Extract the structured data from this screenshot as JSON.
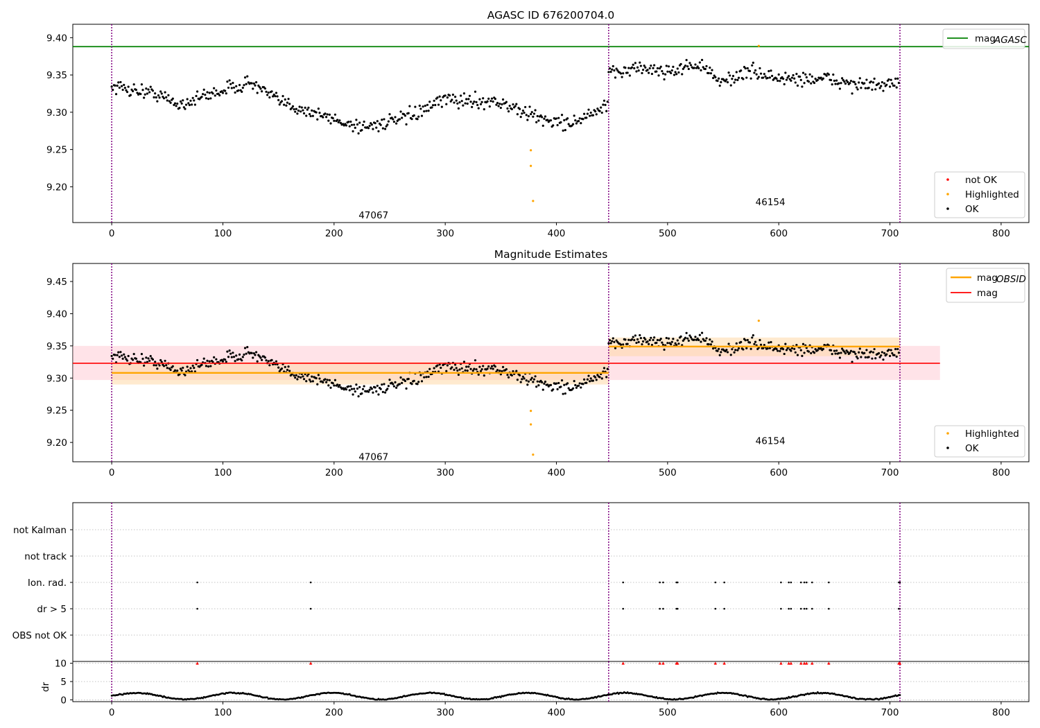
{
  "colors": {
    "ok": "#000000",
    "highlighted": "#ffa500",
    "not_ok": "#ff0000",
    "mag_agasc": "#008000",
    "mag_obsid": "#ffa500",
    "mag": "#ff0000",
    "band_mag": "#ffc0cb",
    "band_obsid": "#ffd8a8",
    "obsid_boundary": "#800080"
  },
  "chart_data": [
    {
      "type": "scatter",
      "title": "AGASC ID 676200704.0",
      "xlim": [
        -35,
        825
      ],
      "ylim": [
        9.152,
        9.418
      ],
      "x_ticks": [
        0,
        100,
        200,
        300,
        400,
        500,
        600,
        700,
        800
      ],
      "y_ticks": [
        9.2,
        9.25,
        9.3,
        9.35,
        9.4
      ],
      "y_tick_labels": [
        "9.20",
        "9.25",
        "9.30",
        "9.35",
        "9.40"
      ],
      "grid": false,
      "obsid_boundaries": [
        0,
        447,
        709
      ],
      "obsid_labels": [
        {
          "text": "47067",
          "x": 223,
          "y": 9.162
        },
        {
          "text": "46154",
          "x": 580,
          "y": 9.18
        }
      ],
      "mag_agasc": 9.388,
      "ok_segments": [
        {
          "x_start": 0,
          "x_end": 446,
          "y_knots": [
            [
              0,
              9.335
            ],
            [
              40,
              9.325
            ],
            [
              60,
              9.31
            ],
            [
              100,
              9.33
            ],
            [
              125,
              9.34
            ],
            [
              150,
              9.315
            ],
            [
              180,
              9.3
            ],
            [
              200,
              9.29
            ],
            [
              225,
              9.28
            ],
            [
              260,
              9.29
            ],
            [
              285,
              9.305
            ],
            [
              300,
              9.318
            ],
            [
              320,
              9.315
            ],
            [
              345,
              9.315
            ],
            [
              370,
              9.3
            ],
            [
              390,
              9.29
            ],
            [
              410,
              9.285
            ],
            [
              430,
              9.295
            ],
            [
              446,
              9.31
            ]
          ],
          "noise": 0.009
        },
        {
          "x_start": 447,
          "x_end": 708,
          "y_knots": [
            [
              447,
              9.35
            ],
            [
              470,
              9.36
            ],
            [
              500,
              9.355
            ],
            [
              530,
              9.365
            ],
            [
              545,
              9.34
            ],
            [
              575,
              9.355
            ],
            [
              600,
              9.345
            ],
            [
              640,
              9.345
            ],
            [
              680,
              9.335
            ],
            [
              708,
              9.338
            ]
          ],
          "noise": 0.009
        }
      ],
      "highlighted_points": [
        [
          377,
          9.249
        ],
        [
          377,
          9.228
        ],
        [
          379,
          9.181
        ],
        [
          582,
          9.389
        ]
      ],
      "not_ok_points": [],
      "legend": {
        "position": "upper right",
        "lines": [
          {
            "label": "mag",
            "sub": "AGASC"
          }
        ]
      },
      "legend2": {
        "position": "lower right",
        "entries": [
          "not OK",
          "Highlighted",
          "OK"
        ]
      }
    },
    {
      "type": "scatter",
      "title": "Magnitude Estimates",
      "xlim": [
        -35,
        825
      ],
      "ylim": [
        9.17,
        9.478
      ],
      "x_ticks": [
        0,
        100,
        200,
        300,
        400,
        500,
        600,
        700,
        800
      ],
      "y_ticks": [
        9.2,
        9.25,
        9.3,
        9.35,
        9.4,
        9.45
      ],
      "y_tick_labels": [
        "9.20",
        "9.25",
        "9.30",
        "9.35",
        "9.40",
        "9.45"
      ],
      "grid": false,
      "obsid_boundaries": [
        0,
        447,
        709
      ],
      "obsid_labels": [
        {
          "text": "47067",
          "x": 223,
          "y": 9.178
        },
        {
          "text": "46154",
          "x": 580,
          "y": 9.203
        }
      ],
      "mag": {
        "value": 9.323,
        "band": [
          9.297,
          9.35
        ],
        "x_range": [
          0,
          745
        ]
      },
      "mag_obsid": [
        {
          "x_range": [
            0,
            447
          ],
          "value": 9.308,
          "band": [
            9.29,
            9.325
          ]
        },
        {
          "x_range": [
            447,
            709
          ],
          "value": 9.349,
          "band": [
            9.334,
            9.363
          ]
        }
      ],
      "legend": {
        "position": "upper right",
        "lines": [
          {
            "label": "mag",
            "sub": "OBSID"
          },
          {
            "label": "mag",
            "sub": ""
          }
        ]
      },
      "legend2": {
        "position": "lower right",
        "entries": [
          "Highlighted",
          "OK"
        ]
      }
    },
    {
      "type": "scatter",
      "title": "",
      "xlim": [
        -35,
        825
      ],
      "flag_rows": [
        "not Kalman",
        "not track",
        "Ion. rad.",
        "dr > 5",
        "OBS not OK"
      ],
      "flag_points": {
        "Ion. rad.": [
          77,
          179,
          460,
          493,
          496,
          508,
          509,
          543,
          551,
          602,
          609,
          611,
          620,
          623,
          625,
          630,
          645,
          708,
          709
        ],
        "dr > 5": [
          77,
          179,
          460,
          493,
          496,
          508,
          509,
          543,
          551,
          602,
          609,
          611,
          620,
          623,
          625,
          630,
          645,
          708,
          709
        ]
      },
      "obsid_boundaries": [
        0,
        447,
        709
      ]
    },
    {
      "type": "scatter",
      "title": "",
      "ylabel": "dr",
      "xlim": [
        -35,
        825
      ],
      "ylim": [
        -0.5,
        10.5
      ],
      "y_ticks": [
        0,
        5,
        10
      ],
      "y_tick_labels": [
        "0",
        "5",
        "10"
      ],
      "x_ticks": [
        0,
        100,
        200,
        300,
        400,
        500,
        600,
        700,
        800
      ],
      "clipped_points_at_10": [
        77,
        179,
        460,
        493,
        496,
        508,
        509,
        543,
        551,
        602,
        609,
        611,
        620,
        623,
        625,
        630,
        645,
        708,
        709
      ],
      "dr_typical_range": [
        0,
        2.5
      ],
      "obsid_boundaries": [
        0,
        447,
        709
      ]
    }
  ]
}
